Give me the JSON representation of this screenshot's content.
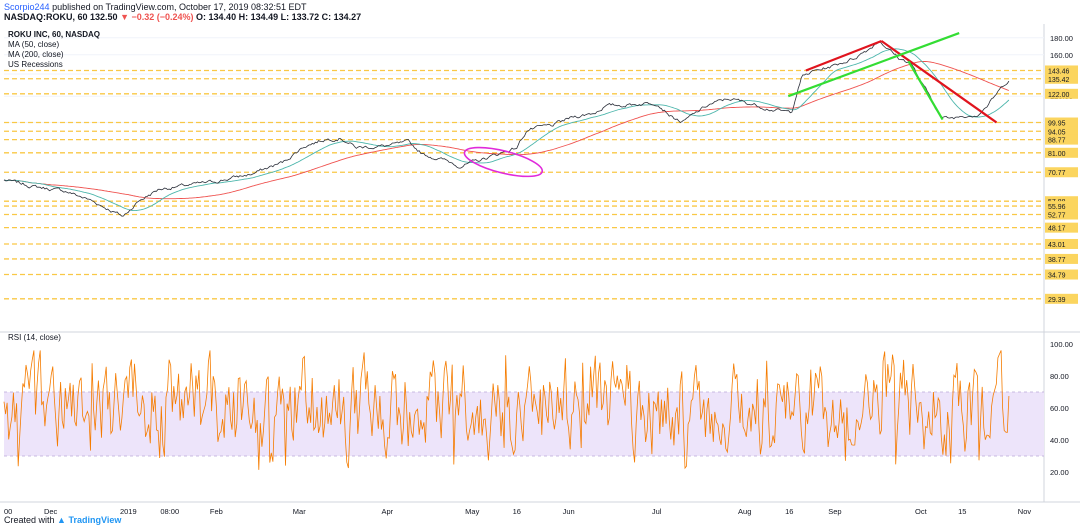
{
  "header": {
    "user": "Scorpio244",
    "published": "published on TradingView.com, October 17, 2019 08:32:51 EDT",
    "symbol": "NASDAQ:ROKU, 60",
    "last": "132.50",
    "change": "▼ −0.32 (−0.24%)",
    "ohlc": "O: 134.40 H: 134.49 L: 133.72 C: 134.27"
  },
  "legend": {
    "title": "ROKU INC, 60, NASDAQ",
    "items": [
      "MA (50, close)",
      "MA (200, close)",
      "US Recessions"
    ],
    "rsi": "RSI (14, close)"
  },
  "footer": {
    "created": "Created with",
    "brand": "TradingView"
  },
  "colors": {
    "price": "#2a2e39",
    "ma50": "#4db6ac",
    "ma200": "#ef5350",
    "rsi": "#f57c00",
    "rsi_band": "#ede4fa",
    "level": "#f9c846",
    "level_label_bg": "#fbd55f",
    "red_line": "#e0141e",
    "green_line": "#33dd33",
    "ellipse": "#e02adb"
  },
  "chart_data": [
    {
      "type": "line",
      "title": "ROKU INC, 60, NASDAQ",
      "x_ticks": [
        "00",
        "Dec",
        "2019",
        "08:00",
        "Feb",
        "Mar",
        "Apr",
        "May",
        "16",
        "Jun",
        "Jul",
        "Aug",
        "16",
        "Sep",
        "Oct",
        "15",
        "Nov"
      ],
      "y_ticks": [
        180,
        160,
        140,
        120,
        100
      ],
      "ylim": [
        24,
        190
      ],
      "scale": "log",
      "price_keypoints": [
        [
          0,
          67
        ],
        [
          0.03,
          64
        ],
        [
          0.06,
          62
        ],
        [
          0.085,
          58
        ],
        [
          0.1,
          55
        ],
        [
          0.115,
          52
        ],
        [
          0.13,
          58
        ],
        [
          0.15,
          63
        ],
        [
          0.2,
          66
        ],
        [
          0.24,
          70
        ],
        [
          0.27,
          76
        ],
        [
          0.29,
          85
        ],
        [
          0.31,
          89
        ],
        [
          0.325,
          90
        ],
        [
          0.34,
          84
        ],
        [
          0.37,
          85
        ],
        [
          0.39,
          87
        ],
        [
          0.405,
          80
        ],
        [
          0.425,
          77
        ],
        [
          0.44,
          74
        ],
        [
          0.455,
          76
        ],
        [
          0.47,
          79
        ],
        [
          0.48,
          81
        ],
        [
          0.495,
          84
        ],
        [
          0.505,
          95
        ],
        [
          0.53,
          98
        ],
        [
          0.55,
          104
        ],
        [
          0.57,
          107
        ],
        [
          0.58,
          112
        ],
        [
          0.6,
          113
        ],
        [
          0.63,
          115
        ],
        [
          0.645,
          104
        ],
        [
          0.655,
          100
        ],
        [
          0.68,
          113
        ],
        [
          0.7,
          118
        ],
        [
          0.72,
          114
        ],
        [
          0.75,
          108
        ],
        [
          0.76,
          107
        ],
        [
          0.77,
          137
        ],
        [
          0.78,
          142
        ],
        [
          0.8,
          148
        ],
        [
          0.82,
          156
        ],
        [
          0.835,
          167
        ],
        [
          0.845,
          177
        ],
        [
          0.855,
          165
        ],
        [
          0.865,
          155
        ],
        [
          0.875,
          152
        ],
        [
          0.885,
          132
        ],
        [
          0.895,
          118
        ],
        [
          0.905,
          103
        ],
        [
          0.915,
          103
        ],
        [
          0.925,
          105
        ],
        [
          0.94,
          106
        ],
        [
          0.95,
          113
        ],
        [
          0.96,
          124
        ],
        [
          0.97,
          135
        ]
      ],
      "series": [
        {
          "name": "MA (50, close)"
        },
        {
          "name": "MA (200, close)"
        }
      ],
      "levels": [
        {
          "value": 143.46,
          "label": "143.46"
        },
        {
          "value": 135.42,
          "label": "135.42"
        },
        {
          "value": 122.0,
          "label": "122.00"
        },
        {
          "value": 99.95,
          "label": "99.95"
        },
        {
          "value": 94.05,
          "label": "94.05"
        },
        {
          "value": 88.77,
          "label": "88.77"
        },
        {
          "value": 81.0,
          "label": "81.00"
        },
        {
          "value": 70.77,
          "label": "70.77"
        },
        {
          "value": 57.88,
          "label": "57.88"
        },
        {
          "value": 55.96,
          "label": "55.96"
        },
        {
          "value": 52.77,
          "label": "52.77"
        },
        {
          "value": 48.17,
          "label": "48.17"
        },
        {
          "value": 43.01,
          "label": "43.01"
        },
        {
          "value": 38.77,
          "label": "38.77"
        },
        {
          "value": 34.79,
          "label": "34.79"
        },
        {
          "value": 29.39,
          "label": "29.39"
        }
      ],
      "trend_lines": [
        {
          "color": "red_line",
          "from": [
            0.774,
            143.46
          ],
          "to": [
            0.847,
            176
          ]
        },
        {
          "color": "red_line",
          "from": [
            0.847,
            176
          ],
          "to": [
            0.958,
            100
          ]
        },
        {
          "color": "green_line",
          "from": [
            0.757,
            120
          ],
          "to": [
            0.922,
            186
          ]
        },
        {
          "color": "green_line",
          "from": [
            0.873,
            153
          ],
          "to": [
            0.906,
            102
          ]
        }
      ],
      "annotation": {
        "type": "ellipse",
        "center": [
          0.482,
          76
        ]
      }
    },
    {
      "type": "line",
      "title": "RSI (14, close)",
      "y_ticks": [
        100,
        80,
        60,
        40,
        20
      ],
      "ylim": [
        5,
        105
      ],
      "band": [
        30,
        70
      ]
    }
  ]
}
